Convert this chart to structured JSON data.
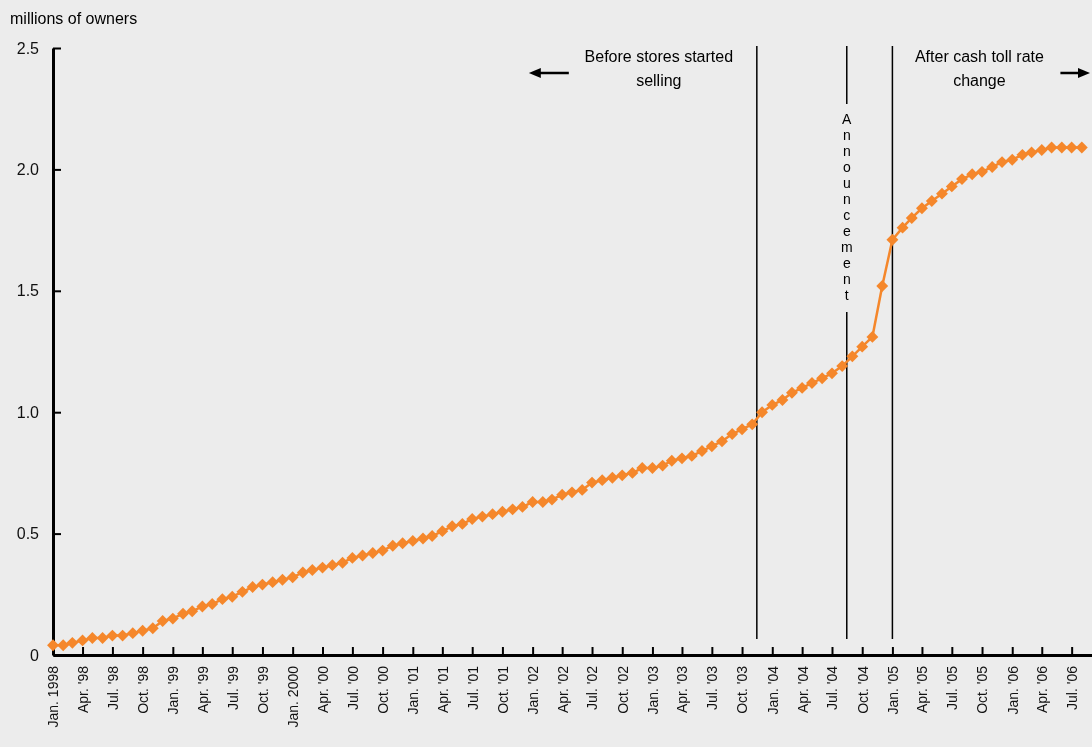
{
  "chart_data": {
    "type": "line",
    "ylabel": "millions of owners",
    "x": [
      "1998-01",
      "1998-02",
      "1998-03",
      "1998-04",
      "1998-05",
      "1998-06",
      "1998-07",
      "1998-08",
      "1998-09",
      "1998-10",
      "1998-11",
      "1998-12",
      "1999-01",
      "1999-02",
      "1999-03",
      "1999-04",
      "1999-05",
      "1999-06",
      "1999-07",
      "1999-08",
      "1999-09",
      "1999-10",
      "1999-11",
      "1999-12",
      "2000-01",
      "2000-02",
      "2000-03",
      "2000-04",
      "2000-05",
      "2000-06",
      "2000-07",
      "2000-08",
      "2000-09",
      "2000-10",
      "2000-11",
      "2000-12",
      "2001-01",
      "2001-02",
      "2001-03",
      "2001-04",
      "2001-05",
      "2001-06",
      "2001-07",
      "2001-08",
      "2001-09",
      "2001-10",
      "2001-11",
      "2001-12",
      "2002-01",
      "2002-02",
      "2002-03",
      "2002-04",
      "2002-05",
      "2002-06",
      "2002-07",
      "2002-08",
      "2002-09",
      "2002-10",
      "2002-11",
      "2002-12",
      "2003-01",
      "2003-02",
      "2003-03",
      "2003-04",
      "2003-05",
      "2003-06",
      "2003-07",
      "2003-08",
      "2003-09",
      "2003-10",
      "2003-11",
      "2003-12",
      "2004-01",
      "2004-02",
      "2004-03",
      "2004-04",
      "2004-05",
      "2004-06",
      "2004-07",
      "2004-08",
      "2004-09",
      "2004-10",
      "2004-11",
      "2004-12",
      "2005-01",
      "2005-02",
      "2005-03",
      "2005-04",
      "2005-05",
      "2005-06",
      "2005-07",
      "2005-08",
      "2005-09",
      "2005-10",
      "2005-11",
      "2005-12",
      "2006-01",
      "2006-02",
      "2006-03",
      "2006-04",
      "2006-05",
      "2006-06",
      "2006-07",
      "2006-08"
    ],
    "series": [
      {
        "color": "#f5872b",
        "values": [
          0.04,
          0.04,
          0.05,
          0.06,
          0.07,
          0.07,
          0.08,
          0.08,
          0.09,
          0.1,
          0.11,
          0.14,
          0.15,
          0.17,
          0.18,
          0.2,
          0.21,
          0.23,
          0.24,
          0.26,
          0.28,
          0.29,
          0.3,
          0.31,
          0.32,
          0.34,
          0.35,
          0.36,
          0.37,
          0.38,
          0.4,
          0.41,
          0.42,
          0.43,
          0.45,
          0.46,
          0.47,
          0.48,
          0.49,
          0.51,
          0.53,
          0.54,
          0.56,
          0.57,
          0.58,
          0.59,
          0.6,
          0.61,
          0.63,
          0.63,
          0.64,
          0.66,
          0.67,
          0.68,
          0.71,
          0.72,
          0.73,
          0.74,
          0.75,
          0.77,
          0.77,
          0.78,
          0.8,
          0.81,
          0.82,
          0.84,
          0.86,
          0.88,
          0.91,
          0.93,
          0.95,
          1.0,
          1.03,
          1.05,
          1.08,
          1.1,
          1.12,
          1.14,
          1.16,
          1.19,
          1.23,
          1.27,
          1.31,
          1.52,
          1.71,
          1.76,
          1.8,
          1.84,
          1.87,
          1.9,
          1.93,
          1.96,
          1.98,
          1.99,
          2.01,
          2.03,
          2.04,
          2.06,
          2.07,
          2.08,
          2.09,
          2.09,
          2.09,
          2.09
        ]
      }
    ],
    "xlim": [
      "1998-01",
      "2006-09"
    ],
    "xticks": [
      {
        "value": "1998-01",
        "label": "Jan. 1998"
      },
      {
        "value": "1998-04",
        "label": "Apr. '98"
      },
      {
        "value": "1998-07",
        "label": "Jul. '98"
      },
      {
        "value": "1998-10",
        "label": "Oct. '98"
      },
      {
        "value": "1999-01",
        "label": "Jan. '99"
      },
      {
        "value": "1999-04",
        "label": "Apr. '99"
      },
      {
        "value": "1999-07",
        "label": "Jul. '99"
      },
      {
        "value": "1999-10",
        "label": "Oct. '99"
      },
      {
        "value": "2000-01",
        "label": "Jan. 2000"
      },
      {
        "value": "2000-04",
        "label": "Apr. '00"
      },
      {
        "value": "2000-07",
        "label": "Jul. '00"
      },
      {
        "value": "2000-10",
        "label": "Oct. '00"
      },
      {
        "value": "2001-01",
        "label": "Jan. '01"
      },
      {
        "value": "2001-04",
        "label": "Apr. '01"
      },
      {
        "value": "2001-07",
        "label": "Jul. '01"
      },
      {
        "value": "2001-10",
        "label": "Oct. '01"
      },
      {
        "value": "2002-01",
        "label": "Jan. '02"
      },
      {
        "value": "2002-04",
        "label": "Apr. '02"
      },
      {
        "value": "2002-07",
        "label": "Jul. '02"
      },
      {
        "value": "2002-10",
        "label": "Oct. '02"
      },
      {
        "value": "2003-01",
        "label": "Jan. '03"
      },
      {
        "value": "2003-04",
        "label": "Apr. '03"
      },
      {
        "value": "2003-07",
        "label": "Jul. '03"
      },
      {
        "value": "2003-10",
        "label": "Oct. '03"
      },
      {
        "value": "2004-01",
        "label": "Jan. '04"
      },
      {
        "value": "2004-04",
        "label": "Apr. '04"
      },
      {
        "value": "2004-07",
        "label": "Jul. '04"
      },
      {
        "value": "2004-10",
        "label": "Oct. '04"
      },
      {
        "value": "2005-01",
        "label": "Jan. '05"
      },
      {
        "value": "2005-04",
        "label": "Apr. '05"
      },
      {
        "value": "2005-07",
        "label": "Jul. '05"
      },
      {
        "value": "2005-10",
        "label": "Oct. '05"
      },
      {
        "value": "2006-01",
        "label": "Jan. '06"
      },
      {
        "value": "2006-04",
        "label": "Apr. '06"
      },
      {
        "value": "2006-07",
        "label": "Jul. '06"
      }
    ],
    "ylim": [
      0,
      2.5
    ],
    "yticks": [
      0,
      0.5,
      {
        "value": 1,
        "label": "1.0"
      },
      1.5,
      {
        "value": 2,
        "label": "2.0"
      },
      2.5
    ],
    "marker": "diamond",
    "line_style": "solid",
    "ref_lines": [
      {
        "axis": "x",
        "value": "2003-11-15",
        "label": "Before stores started selling",
        "color": "#000000"
      },
      {
        "axis": "x",
        "value": "2004-08-15",
        "label": "Announcement",
        "color": "#000000"
      },
      {
        "axis": "x",
        "value": "2005-01",
        "label": "After cash toll rate change",
        "color": "#000000"
      }
    ]
  }
}
